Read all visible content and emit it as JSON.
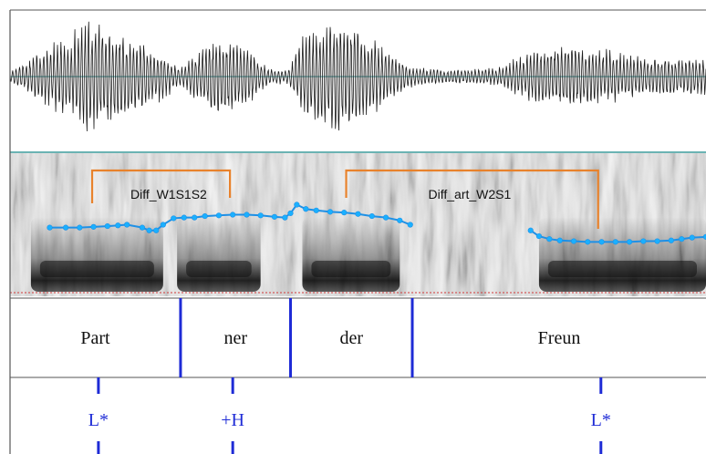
{
  "colors": {
    "waveform": "#1a1a1a",
    "divider": "#3a9a9a",
    "pitch_line": "#1e90e6",
    "pitch_dot": "#1ab0ff",
    "bracket": "#e8822c",
    "boundary": "#1e2bd6",
    "spectrogram_dark": "#222222",
    "spectrogram_light": "#d8d8d8"
  },
  "syllables": [
    {
      "label": "Part",
      "start": 0.0,
      "end": 0.245
    },
    {
      "label": "ner",
      "start": 0.245,
      "end": 0.403
    },
    {
      "label": "der",
      "start": 0.403,
      "end": 0.578
    },
    {
      "label": "Freun",
      "start": 0.578,
      "end": 1.0
    }
  ],
  "tones": [
    {
      "label": "L*",
      "t": 0.127
    },
    {
      "label": "+H",
      "t": 0.32
    },
    {
      "label": "L*",
      "t": 0.849
    }
  ],
  "brackets": [
    {
      "label": "Diff_W1S1S2",
      "from": 0.118,
      "to": 0.316
    },
    {
      "label": "Diff_art_W2S1",
      "from": 0.483,
      "to": 0.845
    }
  ],
  "pitch_segments": [
    [
      [
        0.057,
        0.52
      ],
      [
        0.08,
        0.52
      ],
      [
        0.1,
        0.52
      ],
      [
        0.12,
        0.515
      ],
      [
        0.14,
        0.51
      ],
      [
        0.155,
        0.505
      ],
      [
        0.168,
        0.5
      ],
      [
        0.19,
        0.52
      ],
      [
        0.2,
        0.54
      ],
      [
        0.21,
        0.54
      ],
      [
        0.22,
        0.5
      ],
      [
        0.235,
        0.455
      ],
      [
        0.25,
        0.45
      ],
      [
        0.265,
        0.45
      ],
      [
        0.28,
        0.44
      ],
      [
        0.3,
        0.435
      ],
      [
        0.32,
        0.43
      ],
      [
        0.34,
        0.43
      ],
      [
        0.36,
        0.435
      ],
      [
        0.38,
        0.445
      ],
      [
        0.395,
        0.45
      ],
      [
        0.403,
        0.42
      ],
      [
        0.412,
        0.36
      ],
      [
        0.425,
        0.39
      ],
      [
        0.44,
        0.4
      ],
      [
        0.46,
        0.41
      ],
      [
        0.48,
        0.415
      ],
      [
        0.5,
        0.425
      ],
      [
        0.52,
        0.44
      ],
      [
        0.54,
        0.45
      ],
      [
        0.56,
        0.47
      ],
      [
        0.575,
        0.5
      ]
    ],
    [
      [
        0.748,
        0.54
      ],
      [
        0.76,
        0.58
      ],
      [
        0.775,
        0.6
      ],
      [
        0.79,
        0.61
      ],
      [
        0.81,
        0.615
      ],
      [
        0.83,
        0.62
      ],
      [
        0.85,
        0.62
      ],
      [
        0.87,
        0.62
      ],
      [
        0.89,
        0.62
      ],
      [
        0.91,
        0.615
      ],
      [
        0.93,
        0.615
      ],
      [
        0.95,
        0.61
      ],
      [
        0.965,
        0.6
      ],
      [
        0.98,
        0.59
      ],
      [
        1.0,
        0.585
      ]
    ]
  ]
}
